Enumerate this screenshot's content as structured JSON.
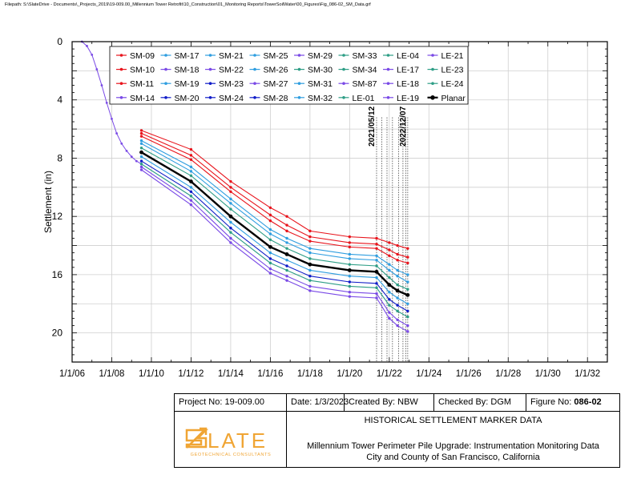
{
  "filepath": "Filepath: S:\\SlateDrive - Documents\\_Projects_2019\\19-009.00_Millennium Tower Retrofit\\10_Construction\\01_Monitoring Reports\\TowerSoilWater\\00_Figures\\Fig_086-02_SM_Data.grf",
  "colors": {
    "red": "#e8141c",
    "blue": "#2f9ee0",
    "navy": "#101cc8",
    "purple": "#7a4ae6",
    "teal": "#2e9e86",
    "black": "#000000"
  },
  "chart_data": {
    "type": "line",
    "ylabel": "Settlement (in)",
    "xlabel": "",
    "x_ticks": [
      "1/1/06",
      "1/1/08",
      "1/1/10",
      "1/1/12",
      "1/1/14",
      "1/1/16",
      "1/1/18",
      "1/1/20",
      "1/1/22",
      "1/1/24",
      "1/1/26",
      "1/1/28",
      "1/1/30",
      "1/1/32"
    ],
    "xlim": [
      "2006-01-01",
      "2033-01-01"
    ],
    "y_ticks": [
      "0",
      "4",
      "8",
      "12",
      "16",
      "20"
    ],
    "ylim": [
      0,
      22
    ],
    "y_reversed": true,
    "grid": true,
    "legend_position": "top",
    "annotations": [
      {
        "text": "2021/05/12",
        "x": "2021-05-12"
      },
      {
        "text": "2022/12/07",
        "x": "2022-12-07"
      }
    ],
    "marker_dates": [
      "2021-05-12",
      "2021-08-15",
      "2021-11-20",
      "2022-03-01",
      "2022-06-20",
      "2022-09-10",
      "2022-11-01",
      "2022-12-07"
    ],
    "legend": [
      {
        "name": "SM-09",
        "color": "#e8141c"
      },
      {
        "name": "SM-17",
        "color": "#2f9ee0"
      },
      {
        "name": "SM-21",
        "color": "#2f9ee0"
      },
      {
        "name": "SM-25",
        "color": "#2f9ee0"
      },
      {
        "name": "SM-29",
        "color": "#7a4ae6"
      },
      {
        "name": "SM-33",
        "color": "#2e9e86"
      },
      {
        "name": "LE-04",
        "color": "#2e9e86"
      },
      {
        "name": "LE-21",
        "color": "#7a4ae6"
      },
      {
        "name": "SM-10",
        "color": "#e8141c"
      },
      {
        "name": "SM-18",
        "color": "#7a4ae6"
      },
      {
        "name": "SM-22",
        "color": "#7a4ae6"
      },
      {
        "name": "SM-26",
        "color": "#2f9ee0"
      },
      {
        "name": "SM-30",
        "color": "#2e9e86"
      },
      {
        "name": "SM-34",
        "color": "#2e9e86"
      },
      {
        "name": "LE-17",
        "color": "#7a4ae6"
      },
      {
        "name": "LE-23",
        "color": "#2e9e86"
      },
      {
        "name": "SM-11",
        "color": "#e8141c"
      },
      {
        "name": "SM-19",
        "color": "#2f9ee0"
      },
      {
        "name": "SM-23",
        "color": "#101cc8"
      },
      {
        "name": "SM-27",
        "color": "#7a4ae6"
      },
      {
        "name": "SM-31",
        "color": "#2f9ee0"
      },
      {
        "name": "SM-87",
        "color": "#7a4ae6"
      },
      {
        "name": "LE-18",
        "color": "#7a4ae6"
      },
      {
        "name": "LE-24",
        "color": "#2e9e86"
      },
      {
        "name": "SM-14",
        "color": "#7a4ae6"
      },
      {
        "name": "SM-20",
        "color": "#101cc8"
      },
      {
        "name": "SM-24",
        "color": "#101cc8"
      },
      {
        "name": "SM-28",
        "color": "#101cc8"
      },
      {
        "name": "SM-32",
        "color": "#2f9ee0"
      },
      {
        "name": "LE-01",
        "color": "#2e9e86"
      },
      {
        "name": "LE-19",
        "color": "#7a4ae6"
      },
      {
        "name": "Planar",
        "color": "#000000"
      }
    ],
    "initial_curve": {
      "color": "#7a4ae6",
      "x": [
        "2006-07-01",
        "2006-10-01",
        "2007-01-01",
        "2007-04-01",
        "2007-07-01",
        "2007-10-01",
        "2008-01-01",
        "2008-04-01",
        "2008-07-01",
        "2008-10-01",
        "2009-01-01",
        "2009-04-01",
        "2009-07-01"
      ],
      "y": [
        0.0,
        0.3,
        0.9,
        1.9,
        3.0,
        4.2,
        5.3,
        6.3,
        7.0,
        7.5,
        7.9,
        8.2,
        8.4
      ]
    },
    "series": [
      {
        "name": "SM-09",
        "color": "#e8141c",
        "x": [
          "2009-07-01",
          "2012-01-01",
          "2014-01-01",
          "2016-01-01",
          "2016-11-01",
          "2018-01-01",
          "2020-01-01",
          "2021-05-12",
          "2022-01-01",
          "2022-06-01",
          "2022-12-07"
        ],
        "y": [
          6.1,
          7.4,
          9.6,
          11.4,
          12.0,
          13.0,
          13.4,
          13.5,
          13.8,
          14.0,
          14.2
        ]
      },
      {
        "name": "SM-10",
        "color": "#e8141c",
        "x": [
          "2009-07-01",
          "2012-01-01",
          "2014-01-01",
          "2016-01-01",
          "2016-11-01",
          "2018-01-01",
          "2020-01-01",
          "2021-05-12",
          "2022-01-01",
          "2022-06-01",
          "2022-12-07"
        ],
        "y": [
          6.3,
          7.8,
          10.0,
          11.9,
          12.6,
          13.4,
          13.8,
          13.9,
          14.3,
          14.6,
          14.8
        ]
      },
      {
        "name": "SM-11",
        "color": "#e8141c",
        "x": [
          "2009-07-01",
          "2012-01-01",
          "2014-01-01",
          "2016-01-01",
          "2016-11-01",
          "2018-01-01",
          "2020-01-01",
          "2021-05-12",
          "2022-01-01",
          "2022-06-01",
          "2022-12-07"
        ],
        "y": [
          6.5,
          8.1,
          10.3,
          12.3,
          13.0,
          13.7,
          14.1,
          14.2,
          14.7,
          15.0,
          15.2
        ]
      },
      {
        "name": "SM-17",
        "color": "#2f9ee0",
        "x": [
          "2009-07-01",
          "2012-01-01",
          "2014-01-01",
          "2016-01-01",
          "2016-11-01",
          "2018-01-01",
          "2020-01-01",
          "2021-05-12",
          "2022-01-01",
          "2022-06-01",
          "2022-12-07"
        ],
        "y": [
          6.8,
          8.6,
          10.8,
          12.9,
          13.5,
          14.2,
          14.6,
          14.7,
          15.3,
          15.7,
          16.0
        ]
      },
      {
        "name": "SM-19",
        "color": "#2f9ee0",
        "x": [
          "2009-07-01",
          "2012-01-01",
          "2014-01-01",
          "2016-01-01",
          "2016-11-01",
          "2018-01-01",
          "2020-01-01",
          "2021-05-12",
          "2022-01-01",
          "2022-06-01",
          "2022-12-07"
        ],
        "y": [
          7.0,
          8.9,
          11.1,
          13.2,
          13.8,
          14.5,
          14.9,
          15.0,
          15.7,
          16.1,
          16.5
        ]
      },
      {
        "name": "SM-33",
        "color": "#2e9e86",
        "x": [
          "2009-07-01",
          "2012-01-01",
          "2014-01-01",
          "2016-01-01",
          "2016-11-01",
          "2018-01-01",
          "2020-01-01",
          "2021-05-12",
          "2022-01-01",
          "2022-06-01",
          "2022-12-07"
        ],
        "y": [
          7.3,
          9.2,
          11.5,
          13.6,
          14.2,
          14.9,
          15.3,
          15.4,
          16.2,
          16.7,
          17.0
        ]
      },
      {
        "name": "Planar",
        "color": "#000000",
        "x": [
          "2009-07-01",
          "2012-01-01",
          "2014-01-01",
          "2016-01-01",
          "2016-11-01",
          "2018-01-01",
          "2020-01-01",
          "2021-05-12",
          "2022-01-01",
          "2022-06-01",
          "2022-12-07"
        ],
        "y": [
          7.6,
          9.6,
          12.0,
          14.1,
          14.6,
          15.3,
          15.7,
          15.8,
          16.7,
          17.1,
          17.4
        ]
      },
      {
        "name": "SM-21",
        "color": "#2f9ee0",
        "x": [
          "2009-07-01",
          "2012-01-01",
          "2014-01-01",
          "2016-01-01",
          "2016-11-01",
          "2018-01-01",
          "2020-01-01",
          "2021-05-12",
          "2022-01-01",
          "2022-06-01",
          "2022-12-07"
        ],
        "y": [
          7.9,
          10.0,
          12.4,
          14.5,
          15.0,
          15.7,
          16.1,
          16.2,
          17.2,
          17.6,
          18.0
        ]
      },
      {
        "name": "SM-23",
        "color": "#101cc8",
        "x": [
          "2009-07-01",
          "2012-01-01",
          "2014-01-01",
          "2016-01-01",
          "2016-11-01",
          "2018-01-01",
          "2020-01-01",
          "2021-05-12",
          "2022-01-01",
          "2022-06-01",
          "2022-12-07"
        ],
        "y": [
          8.2,
          10.3,
          12.8,
          14.9,
          15.4,
          16.1,
          16.5,
          16.6,
          17.7,
          18.1,
          18.5
        ]
      },
      {
        "name": "LE-23",
        "color": "#2e9e86",
        "x": [
          "2009-07-01",
          "2012-01-01",
          "2014-01-01",
          "2016-01-01",
          "2016-11-01",
          "2018-01-01",
          "2020-01-01",
          "2021-05-12",
          "2022-01-01",
          "2022-06-01",
          "2022-12-07"
        ],
        "y": [
          8.4,
          10.6,
          13.1,
          15.2,
          15.7,
          16.4,
          16.8,
          16.9,
          18.1,
          18.5,
          18.9
        ]
      },
      {
        "name": "SM-27",
        "color": "#7a4ae6",
        "x": [
          "2009-07-01",
          "2012-01-01",
          "2014-01-01",
          "2016-01-01",
          "2016-11-01",
          "2018-01-01",
          "2020-01-01",
          "2021-05-12",
          "2022-01-01",
          "2022-06-01",
          "2022-12-07"
        ],
        "y": [
          8.6,
          10.9,
          13.5,
          15.6,
          16.1,
          16.8,
          17.2,
          17.3,
          18.6,
          19.1,
          19.5
        ]
      },
      {
        "name": "LE-21",
        "color": "#7a4ae6",
        "x": [
          "2009-07-01",
          "2012-01-01",
          "2014-01-01",
          "2016-01-01",
          "2016-11-01",
          "2018-01-01",
          "2020-01-01",
          "2021-05-12",
          "2022-01-01",
          "2022-06-01",
          "2022-12-07"
        ],
        "y": [
          8.8,
          11.2,
          13.8,
          15.9,
          16.4,
          17.1,
          17.5,
          17.6,
          19.0,
          19.5,
          19.9
        ]
      }
    ]
  },
  "titleblock": {
    "project_no": "Project No: 19-009.00",
    "date": "Date:  1/3/2023",
    "created_by": "Created By:  NBW",
    "checked_by": "Checked By:  DGM",
    "figure_no_label": "Figure No:",
    "figure_no_value": "086-02",
    "title": "HISTORICAL SETTLEMENT MARKER DATA",
    "desc_line1": "Millennium Tower Perimeter Pile Upgrade: Instrumentation Monitoring Data",
    "desc_line2": "City and County of San Francisco, California",
    "logo_word": "LATE",
    "logo_tagline": "GEOTECHNICAL CONSULTANTS",
    "logo_color": "#f0a534"
  }
}
